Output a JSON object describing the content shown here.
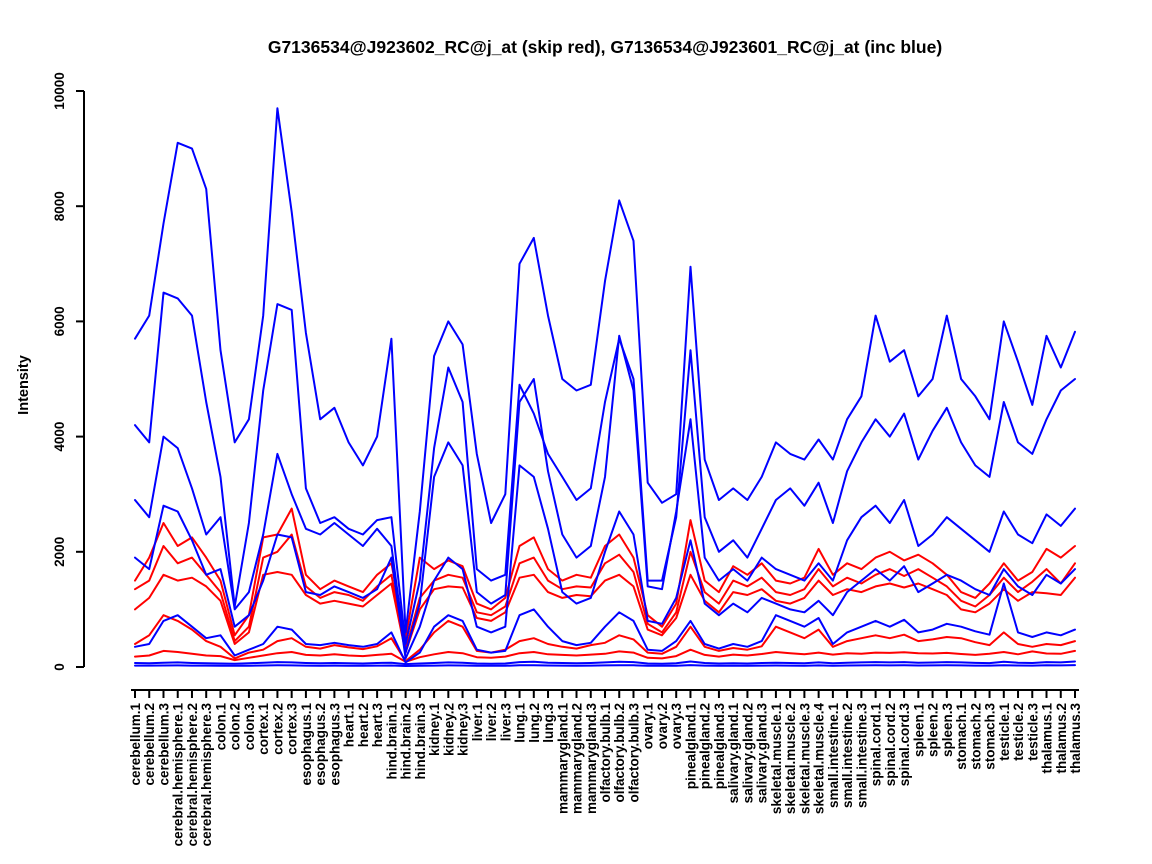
{
  "chart_data": {
    "type": "line",
    "title": "G7136534@J923602_RC@j_at (skip red), G7136534@J923601_RC@j_at (inc blue)",
    "xlabel": "",
    "ylabel": "Intensity",
    "ylim": [
      0,
      10000
    ],
    "yticks": [
      0,
      2000,
      4000,
      6000,
      8000,
      10000
    ],
    "grid": false,
    "legend_position": "none",
    "series_groups": [
      {
        "probe": "G7136534@J923602_RC@j_at",
        "note": "skip",
        "color": "#ff0000"
      },
      {
        "probe": "G7136534@J923601_RC@j_at",
        "note": "inc",
        "color": "#0000ff"
      }
    ],
    "categories": [
      "cerebellum.1",
      "cerebellum.2",
      "cerebellum.3",
      "cerebral.hemisphere.1",
      "cerebral.hemisphere.2",
      "cerebral.hemisphere.3",
      "colon.1",
      "colon.2",
      "colon.3",
      "cortex.1",
      "cortex.2",
      "cortex.3",
      "esophagus.1",
      "esophagus.2",
      "esophagus.3",
      "heart.1",
      "heart.2",
      "heart.3",
      "hind.brain.1",
      "hind.brain.2",
      "hind.brain.3",
      "kidney.1",
      "kidney.2",
      "kidney.3",
      "liver.1",
      "liver.2",
      "liver.3",
      "lung.1",
      "lung.2",
      "lung.3",
      "mammarygland.1",
      "mammarygland.2",
      "mammarygland.3",
      "olfactory.bulb.1",
      "olfactory.bulb.2",
      "olfactory.bulb.3",
      "ovary.1",
      "ovary.2",
      "ovary.3",
      "pinealgland.1",
      "pinealgland.2",
      "pinealgland.3",
      "salivary.gland.1",
      "salivary.gland.2",
      "salivary.gland.3",
      "skeletal.muscle.1",
      "skeletal.muscle.2",
      "skeletal.muscle.3",
      "skeletal.muscle.4",
      "small.intestine.1",
      "small.intestine.2",
      "small.intestine.3",
      "spinal.cord.1",
      "spinal.cord.2",
      "spinal.cord.3",
      "spleen.1",
      "spleen.2",
      "spleen.3",
      "stomach.1",
      "stomach.2",
      "stomach.3",
      "testicle.1",
      "testicle.2",
      "testicle.3",
      "thalamus.1",
      "thalamus.2",
      "thalamus.3"
    ],
    "series": [
      {
        "name": "skip-red-1",
        "probe": "G7136534@J923602_RC@j_at",
        "color": "#ff0000",
        "values": [
          1500,
          1900,
          2500,
          2100,
          2250,
          1900,
          1500,
          550,
          900,
          2250,
          2300,
          2750,
          1600,
          1350,
          1500,
          1400,
          1300,
          1600,
          1800,
          500,
          1900,
          1700,
          1850,
          1750,
          1100,
          1000,
          1200,
          2100,
          2250,
          1700,
          1500,
          1600,
          1550,
          2100,
          2300,
          1900,
          900,
          700,
          1100,
          2550,
          1500,
          1300,
          1750,
          1600,
          1800,
          1500,
          1450,
          1550,
          2050,
          1600,
          1800,
          1700,
          1900,
          2000,
          1850,
          1950,
          1800,
          1600,
          1300,
          1200,
          1450,
          1800,
          1500,
          1650,
          2050,
          1900,
          2100
        ]
      },
      {
        "name": "skip-red-2",
        "probe": "G7136534@J923602_RC@j_at",
        "color": "#ff0000",
        "values": [
          1350,
          1500,
          2100,
          1800,
          1900,
          1600,
          1300,
          450,
          700,
          1900,
          2000,
          2300,
          1400,
          1200,
          1300,
          1250,
          1150,
          1400,
          1600,
          300,
          1200,
          1500,
          1600,
          1550,
          950,
          900,
          1050,
          1800,
          1900,
          1500,
          1350,
          1400,
          1380,
          1800,
          1950,
          1650,
          750,
          600,
          950,
          2000,
          1300,
          1100,
          1500,
          1400,
          1550,
          1300,
          1250,
          1350,
          1700,
          1400,
          1550,
          1450,
          1600,
          1700,
          1580,
          1700,
          1550,
          1400,
          1150,
          1050,
          1250,
          1550,
          1300,
          1480,
          1700,
          1450,
          1800
        ]
      },
      {
        "name": "skip-red-3",
        "probe": "G7136534@J923602_RC@j_at",
        "color": "#ff0000",
        "values": [
          1000,
          1200,
          1600,
          1500,
          1550,
          1400,
          1150,
          400,
          600,
          1600,
          1650,
          1600,
          1250,
          1100,
          1150,
          1100,
          1050,
          1250,
          1450,
          250,
          1000,
          1350,
          1400,
          1380,
          850,
          800,
          950,
          1550,
          1600,
          1300,
          1200,
          1250,
          1230,
          1500,
          1600,
          1400,
          650,
          550,
          850,
          1600,
          1150,
          950,
          1300,
          1250,
          1350,
          1150,
          1100,
          1200,
          1500,
          1250,
          1350,
          1300,
          1400,
          1450,
          1380,
          1450,
          1350,
          1250,
          1000,
          950,
          1100,
          1350,
          1150,
          1300,
          1280,
          1250,
          1550
        ]
      },
      {
        "name": "skip-red-4",
        "probe": "G7136534@J923602_RC@j_at",
        "color": "#ff0000",
        "values": [
          400,
          550,
          900,
          800,
          650,
          450,
          350,
          150,
          250,
          300,
          450,
          500,
          350,
          320,
          380,
          340,
          310,
          360,
          500,
          100,
          300,
          600,
          800,
          700,
          280,
          250,
          300,
          450,
          500,
          400,
          350,
          320,
          380,
          420,
          550,
          480,
          250,
          230,
          350,
          700,
          350,
          280,
          330,
          300,
          360,
          700,
          600,
          500,
          650,
          350,
          450,
          500,
          550,
          500,
          560,
          450,
          480,
          520,
          500,
          430,
          380,
          600,
          400,
          350,
          400,
          380,
          450
        ]
      },
      {
        "name": "skip-red-5",
        "probe": "G7136534@J923602_RC@j_at",
        "color": "#ff0000",
        "values": [
          180,
          200,
          280,
          260,
          230,
          200,
          190,
          120,
          160,
          200,
          240,
          260,
          210,
          200,
          220,
          200,
          190,
          210,
          230,
          90,
          170,
          220,
          260,
          240,
          170,
          160,
          180,
          240,
          260,
          220,
          210,
          200,
          215,
          230,
          270,
          250,
          160,
          150,
          190,
          300,
          210,
          180,
          215,
          200,
          225,
          260,
          240,
          220,
          250,
          215,
          240,
          230,
          250,
          245,
          255,
          240,
          235,
          245,
          225,
          210,
          230,
          260,
          220,
          270,
          235,
          230,
          280
        ]
      },
      {
        "name": "inc-blue-1",
        "probe": "G7136534@J923601_RC@j_at",
        "color": "#0000ff",
        "values": [
          5700,
          6100,
          7700,
          9100,
          9000,
          8300,
          5500,
          3900,
          4300,
          6100,
          9700,
          7900,
          5800,
          4300,
          4500,
          3900,
          3500,
          4000,
          5700,
          600,
          2700,
          5400,
          6000,
          5600,
          3700,
          2500,
          3000,
          7000,
          7450,
          6100,
          5000,
          4800,
          4900,
          6700,
          8100,
          7400,
          3200,
          2850,
          3000,
          6950,
          3600,
          2900,
          3100,
          2900,
          3300,
          3900,
          3700,
          3600,
          3950,
          3600,
          4300,
          4700,
          6100,
          5300,
          5500,
          4700,
          5000,
          6100,
          5000,
          4700,
          4300,
          6000,
          5300,
          4550,
          5750,
          5200,
          5820
        ]
      },
      {
        "name": "inc-blue-2",
        "probe": "G7136534@J923601_RC@j_at",
        "color": "#0000ff",
        "values": [
          4200,
          3900,
          6500,
          6400,
          6100,
          4600,
          3300,
          1050,
          2500,
          4800,
          6300,
          6200,
          3100,
          2500,
          2600,
          2400,
          2300,
          2550,
          2600,
          400,
          1500,
          3800,
          5200,
          4600,
          1700,
          1500,
          1600,
          4900,
          4400,
          3700,
          3300,
          2900,
          3100,
          4600,
          5700,
          5000,
          1500,
          1500,
          2600,
          5500,
          2600,
          2000,
          2200,
          1900,
          2400,
          2900,
          3100,
          2800,
          3200,
          2500,
          3400,
          3900,
          4300,
          4000,
          4400,
          3600,
          4100,
          4500,
          3900,
          3500,
          3300,
          4600,
          3900,
          3700,
          4300,
          4800,
          5000
        ]
      },
      {
        "name": "inc-blue-3",
        "probe": "G7136534@J923601_RC@j_at",
        "color": "#0000ff",
        "values": [
          2900,
          2600,
          4000,
          3800,
          3100,
          2300,
          2600,
          1000,
          1300,
          2300,
          3700,
          3000,
          2400,
          2300,
          2500,
          2300,
          2100,
          2400,
          2100,
          250,
          1100,
          3300,
          3900,
          3500,
          1300,
          1100,
          1250,
          4600,
          5000,
          3400,
          2300,
          1900,
          2100,
          3300,
          5750,
          4800,
          1400,
          1350,
          2700,
          4300,
          1900,
          1500,
          1700,
          1500,
          1900,
          1700,
          1600,
          1500,
          1800,
          1500,
          2200,
          2600,
          2800,
          2500,
          2900,
          2100,
          2300,
          2600,
          2400,
          2200,
          2000,
          2700,
          2300,
          2150,
          2650,
          2450,
          2750
        ]
      },
      {
        "name": "inc-blue-4",
        "probe": "G7136534@J923601_RC@j_at",
        "color": "#0000ff",
        "values": [
          1900,
          1700,
          2800,
          2700,
          2200,
          1600,
          1700,
          700,
          900,
          1500,
          2300,
          2250,
          1300,
          1250,
          1400,
          1300,
          1200,
          1350,
          1900,
          150,
          700,
          1500,
          1900,
          1700,
          700,
          600,
          700,
          3500,
          3300,
          2400,
          1300,
          1100,
          1200,
          2000,
          2700,
          2300,
          800,
          750,
          1200,
          2200,
          1100,
          900,
          1100,
          950,
          1200,
          1100,
          1000,
          950,
          1150,
          900,
          1300,
          1500,
          1700,
          1500,
          1750,
          1300,
          1450,
          1600,
          1500,
          1350,
          1250,
          1700,
          1400,
          1250,
          1600,
          1450,
          1700
        ]
      },
      {
        "name": "inc-blue-5",
        "probe": "G7136534@J923601_RC@j_at",
        "color": "#0000ff",
        "values": [
          350,
          400,
          800,
          900,
          700,
          500,
          550,
          200,
          300,
          400,
          700,
          650,
          400,
          380,
          420,
          380,
          350,
          400,
          600,
          80,
          250,
          700,
          900,
          800,
          300,
          250,
          280,
          900,
          1000,
          700,
          450,
          380,
          420,
          700,
          950,
          800,
          300,
          280,
          450,
          800,
          400,
          320,
          400,
          350,
          450,
          900,
          800,
          700,
          850,
          400,
          600,
          700,
          800,
          700,
          820,
          600,
          650,
          750,
          700,
          620,
          560,
          1450,
          600,
          520,
          600,
          550,
          650
        ]
      },
      {
        "name": "inc-blue-6",
        "probe": "G7136534@J923601_RC@j_at",
        "color": "#0000ff",
        "values": [
          70,
          65,
          75,
          80,
          70,
          65,
          60,
          55,
          65,
          75,
          85,
          80,
          70,
          65,
          70,
          65,
          60,
          70,
          75,
          50,
          60,
          70,
          80,
          75,
          60,
          55,
          60,
          85,
          90,
          75,
          70,
          65,
          70,
          80,
          90,
          85,
          60,
          58,
          65,
          95,
          70,
          60,
          65,
          60,
          70,
          75,
          70,
          65,
          80,
          65,
          75,
          80,
          85,
          80,
          85,
          75,
          78,
          85,
          80,
          72,
          68,
          90,
          75,
          70,
          85,
          80,
          95
        ]
      },
      {
        "name": "inc-blue-7",
        "probe": "G7136534@J923601_RC@j_at",
        "color": "#0000ff",
        "values": [
          25,
          24,
          26,
          28,
          25,
          24,
          22,
          20,
          23,
          26,
          30,
          28,
          25,
          23,
          25,
          23,
          22,
          25,
          26,
          18,
          21,
          25,
          28,
          26,
          21,
          20,
          21,
          30,
          32,
          26,
          25,
          23,
          25,
          28,
          32,
          30,
          21,
          20,
          23,
          33,
          25,
          21,
          23,
          21,
          25,
          26,
          25,
          23,
          28,
          23,
          26,
          28,
          30,
          28,
          30,
          26,
          27,
          30,
          28,
          25,
          24,
          32,
          26,
          25,
          30,
          28,
          33
        ]
      }
    ]
  }
}
